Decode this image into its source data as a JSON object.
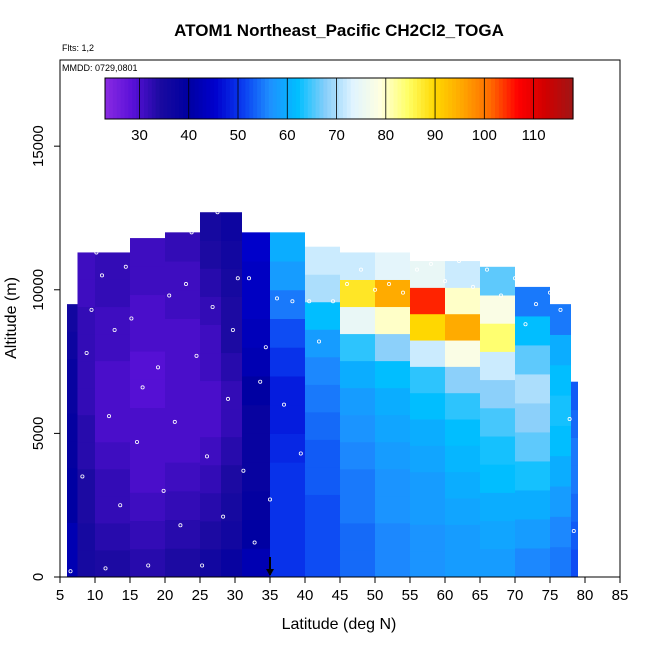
{
  "chart_data": {
    "type": "heatmap",
    "title": "ATOM1 Northeast_Pacific CH2Cl2_TOGA",
    "flights_label": "Flts: 1,2",
    "dates_label": "MMDD: 0729,0801",
    "xlabel": "Latitude (deg N)",
    "ylabel": "Altitude (m)",
    "xlim": [
      5,
      85
    ],
    "ylim": [
      0,
      18000
    ],
    "x_ticks": [
      5,
      10,
      15,
      20,
      25,
      30,
      35,
      40,
      45,
      50,
      55,
      60,
      65,
      70,
      75,
      80,
      85
    ],
    "y_ticks": [
      0,
      5000,
      10000,
      15000
    ],
    "colorbar": {
      "min": 23,
      "max": 118,
      "ticks": [
        30,
        40,
        50,
        60,
        70,
        80,
        90,
        100,
        110
      ],
      "colors": [
        "#8a2be2",
        "#5a10d8",
        "#1a0aa0",
        "#0000a0",
        "#0000cd",
        "#0a3cf0",
        "#1e90ff",
        "#00bfff",
        "#87cefa",
        "#e0f4ff",
        "#ffffe0",
        "#ffff66",
        "#ffd700",
        "#ffa500",
        "#ff6a00",
        "#ff0000",
        "#d00000",
        "#a01515"
      ]
    },
    "marker_latitude": 35,
    "grid": false,
    "legend": "top-inset colorbar",
    "columns": [
      {
        "lat": [
          6,
          7.5
        ],
        "top": 9500,
        "values": [
          42,
          42,
          40,
          40,
          39,
          39,
          38,
          38,
          37,
          36
        ]
      },
      {
        "lat": [
          7.5,
          10
        ],
        "top": 11300,
        "values": [
          35,
          35,
          34,
          34,
          33,
          33,
          32,
          32,
          32,
          32,
          31,
          31
        ]
      },
      {
        "lat": [
          10,
          15
        ],
        "top": 11300,
        "values": [
          34,
          33,
          32,
          32,
          31,
          30,
          30,
          30,
          31,
          31,
          32,
          32
        ]
      },
      {
        "lat": [
          15,
          20
        ],
        "top": 11800,
        "values": [
          33,
          32,
          31,
          30,
          30,
          30,
          29,
          29,
          30,
          30,
          31,
          31
        ]
      },
      {
        "lat": [
          20,
          25
        ],
        "top": 12000,
        "values": [
          34,
          33,
          32,
          31,
          30,
          30,
          30,
          30,
          30,
          31,
          31,
          32
        ]
      },
      {
        "lat": [
          25,
          28
        ],
        "top": 12700,
        "values": [
          36,
          34,
          33,
          32,
          31,
          30,
          30,
          31,
          31,
          32,
          33,
          34,
          35
        ]
      },
      {
        "lat": [
          28,
          31
        ],
        "top": 12700,
        "values": [
          38,
          36,
          35,
          34,
          33,
          32,
          32,
          33,
          34,
          34,
          35,
          36,
          37
        ]
      },
      {
        "lat": [
          31,
          35
        ],
        "top": 12000,
        "values": [
          42,
          40,
          39,
          38,
          38,
          38,
          40,
          42,
          43,
          44,
          44,
          45
        ]
      },
      {
        "lat": [
          35,
          40
        ],
        "top": 12000,
        "values": [
          50,
          50,
          50,
          50,
          49,
          48,
          48,
          50,
          52,
          55,
          58,
          60
        ]
      },
      {
        "lat": [
          40,
          45
        ],
        "top": 11500,
        "values": [
          52,
          52,
          52,
          53,
          53,
          54,
          55,
          56,
          58,
          62,
          70,
          72
        ]
      },
      {
        "lat": [
          45,
          50
        ],
        "top": 11300,
        "values": [
          54,
          54,
          55,
          55,
          56,
          57,
          58,
          60,
          64,
          75,
          88,
          72
        ]
      },
      {
        "lat": [
          50,
          55
        ],
        "top": 11300,
        "values": [
          56,
          56,
          57,
          57,
          58,
          59,
          60,
          62,
          68,
          80,
          95,
          74
        ]
      },
      {
        "lat": [
          55,
          60
        ],
        "top": 11000,
        "values": [
          57,
          57,
          58,
          58,
          59,
          60,
          62,
          64,
          72,
          90,
          105,
          75
        ]
      },
      {
        "lat": [
          60,
          65
        ],
        "top": 11000,
        "values": [
          58,
          58,
          59,
          60,
          61,
          62,
          64,
          68,
          78,
          95,
          80,
          72
        ]
      },
      {
        "lat": [
          65,
          70
        ],
        "top": 10800,
        "values": [
          58,
          59,
          60,
          62,
          63,
          65,
          68,
          72,
          84,
          78,
          66
        ]
      },
      {
        "lat": [
          70,
          75
        ],
        "top": 10100,
        "values": [
          56,
          58,
          60,
          63,
          66,
          68,
          70,
          66,
          62,
          55
        ]
      },
      {
        "lat": [
          75,
          78
        ],
        "top": 9500,
        "values": [
          55,
          56,
          58,
          60,
          62,
          63,
          62,
          60,
          55
        ]
      },
      {
        "lat": [
          78,
          79
        ],
        "top": 6800,
        "values": [
          52,
          53,
          54,
          55,
          55,
          54,
          53
        ]
      }
    ],
    "points": [
      [
        6.5,
        200
      ],
      [
        8.2,
        3500
      ],
      [
        8.8,
        7800
      ],
      [
        9.5,
        9300
      ],
      [
        10.2,
        11300
      ],
      [
        11.0,
        10500
      ],
      [
        11.5,
        300
      ],
      [
        12.0,
        5600
      ],
      [
        12.8,
        8600
      ],
      [
        13.6,
        2500
      ],
      [
        14.4,
        10800
      ],
      [
        15.2,
        9000
      ],
      [
        16.0,
        4700
      ],
      [
        16.8,
        6600
      ],
      [
        17.6,
        400
      ],
      [
        18.3,
        12000
      ],
      [
        19.0,
        7300
      ],
      [
        19.8,
        3000
      ],
      [
        20.6,
        9800
      ],
      [
        21.4,
        5400
      ],
      [
        22.2,
        1800
      ],
      [
        23.0,
        10200
      ],
      [
        23.8,
        12000
      ],
      [
        24.5,
        7700
      ],
      [
        25.3,
        400
      ],
      [
        26.0,
        4200
      ],
      [
        26.8,
        9400
      ],
      [
        27.5,
        12700
      ],
      [
        28.3,
        2100
      ],
      [
        29.0,
        6200
      ],
      [
        29.7,
        8600
      ],
      [
        30.4,
        10400
      ],
      [
        31.2,
        3700
      ],
      [
        32.0,
        10400
      ],
      [
        32.8,
        1200
      ],
      [
        33.6,
        6800
      ],
      [
        34.4,
        8000
      ],
      [
        35.0,
        2700
      ],
      [
        36.0,
        9700
      ],
      [
        37.0,
        6000
      ],
      [
        38.2,
        9600
      ],
      [
        39.4,
        4300
      ],
      [
        40.6,
        9600
      ],
      [
        42.0,
        8200
      ],
      [
        44.0,
        9600
      ],
      [
        46.0,
        10200
      ],
      [
        48.0,
        10700
      ],
      [
        50.0,
        10000
      ],
      [
        52.0,
        10200
      ],
      [
        54.0,
        9900
      ],
      [
        56.0,
        10700
      ],
      [
        58.0,
        10900
      ],
      [
        60.0,
        10300
      ],
      [
        62.0,
        11000
      ],
      [
        64.0,
        10100
      ],
      [
        66.0,
        10700
      ],
      [
        68.0,
        9800
      ],
      [
        70.0,
        10400
      ],
      [
        71.5,
        8800
      ],
      [
        73.0,
        9500
      ],
      [
        75.0,
        9900
      ],
      [
        76.5,
        9300
      ],
      [
        77.8,
        5500
      ],
      [
        78.4,
        1600
      ]
    ]
  }
}
